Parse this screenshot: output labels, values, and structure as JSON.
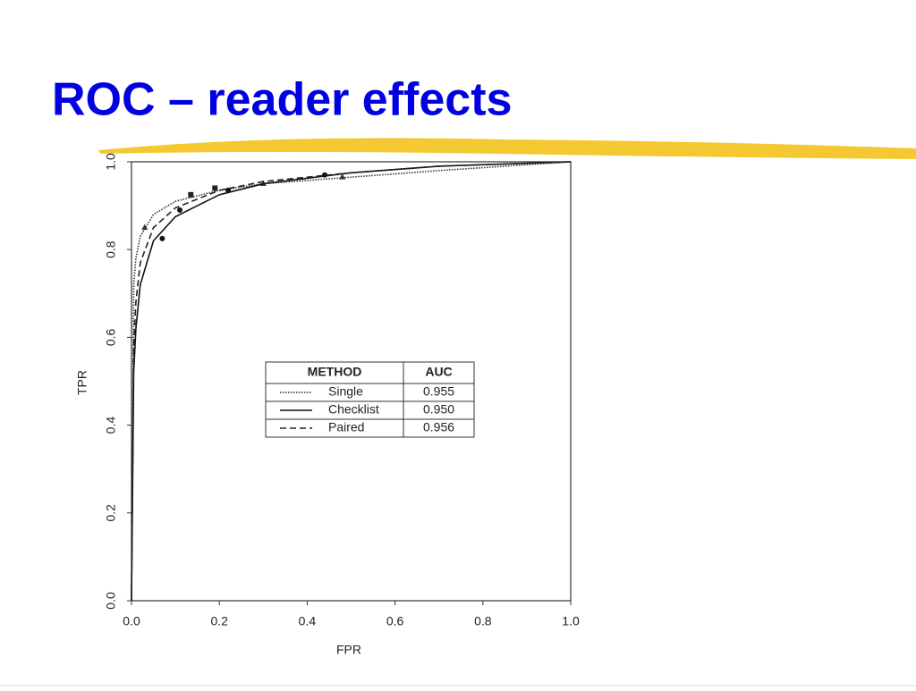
{
  "title": "ROC – reader effects",
  "chart_data": {
    "type": "line",
    "x_label": "FPR",
    "y_label": "TPR",
    "xlim": [
      0,
      1
    ],
    "ylim": [
      0,
      1
    ],
    "xticks": [
      {
        "value": 0,
        "label": "0.0"
      },
      0.2,
      0.4,
      0.6,
      0.8,
      {
        "value": 1,
        "label": "1.0"
      }
    ],
    "yticks": [
      {
        "value": 0,
        "label": "0.0"
      },
      0.2,
      0.4,
      0.6,
      0.8,
      {
        "value": 1,
        "label": "1.0"
      }
    ],
    "legend_headers": [
      "METHOD",
      "AUC"
    ],
    "series": [
      {
        "name": "Single",
        "auc": "0.955",
        "color": "#333333",
        "dash": "1.5 1.5",
        "x": [
          0,
          0.005,
          0.01,
          0.02,
          0.05,
          0.1,
          0.2,
          0.3,
          0.5,
          0.7,
          1.0
        ],
        "values": [
          0,
          0.72,
          0.78,
          0.83,
          0.88,
          0.91,
          0.935,
          0.95,
          0.965,
          0.98,
          1.0
        ],
        "marker": "triangle",
        "marker_x": [
          0.03,
          0.3,
          0.48
        ],
        "marker_y": [
          0.85,
          0.95,
          0.965
        ]
      },
      {
        "name": "Checklist",
        "auc": "0.950",
        "color": "#111111",
        "dash": "none",
        "x": [
          0,
          0.005,
          0.01,
          0.02,
          0.05,
          0.1,
          0.2,
          0.3,
          0.5,
          0.7,
          1.0
        ],
        "values": [
          0,
          0.52,
          0.62,
          0.72,
          0.82,
          0.875,
          0.925,
          0.95,
          0.975,
          0.99,
          1.0
        ],
        "marker": "circle",
        "marker_x": [
          0.07,
          0.11,
          0.22,
          0.44
        ],
        "marker_y": [
          0.825,
          0.89,
          0.935,
          0.97
        ]
      },
      {
        "name": "Paired",
        "auc": "0.956",
        "color": "#222222",
        "dash": "7 4",
        "x": [
          0,
          0.005,
          0.01,
          0.02,
          0.05,
          0.1,
          0.2,
          0.3,
          0.5,
          0.7,
          1.0
        ],
        "values": [
          0,
          0.58,
          0.68,
          0.77,
          0.85,
          0.895,
          0.935,
          0.955,
          0.975,
          0.99,
          1.0
        ],
        "marker": "square",
        "marker_x": [
          0.135,
          0.19
        ],
        "marker_y": [
          0.925,
          0.94
        ]
      }
    ]
  }
}
